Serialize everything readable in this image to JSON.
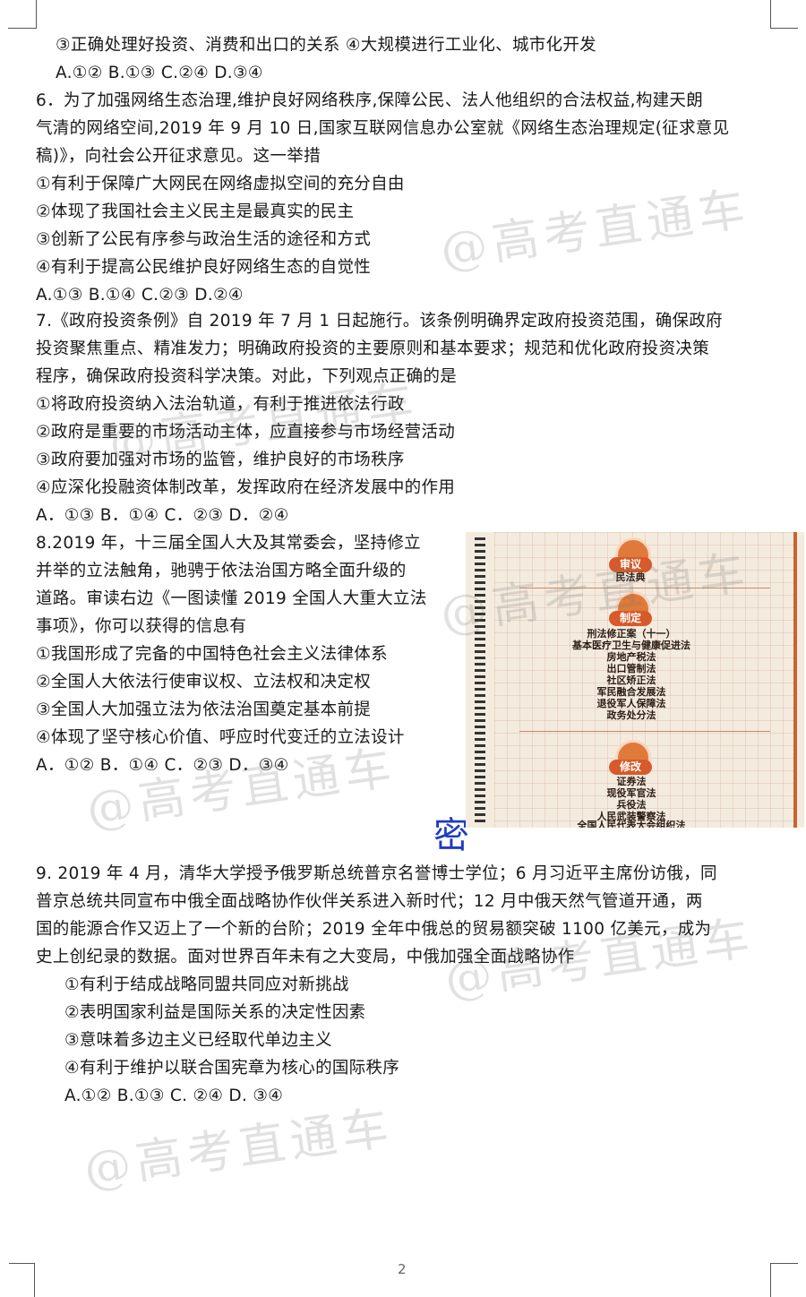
{
  "page_number": "2",
  "watermark": "@高考直通车",
  "stamp": "密",
  "lines": {
    "l01": "③正确处理好投资、消费和出口的关系 ④大规模进行工业化、城市化开发",
    "l02": "A.①② B.①③ C.②④ D.③④",
    "l03": "6．为了加强网络生态治理,维护良好网络秩序,保障公民、法人他组织的合法权益,构建天朗",
    "l04": "气清的网络空间,2019 年 9 月 10 日,国家互联网信息办公室就《网络生态治理规定(征求意见",
    "l05": "稿)》，向社会公开征求意见。这一举措",
    "l06": "①有利于保障广大网民在网络虚拟空间的充分自由",
    "l07": "②体现了我国社会主义民主是最真实的民主",
    "l08": "③创新了公民有序参与政治生活的途径和方式",
    "l09": "④有利于提高公民维护良好网络生态的自觉性",
    "l10": "A.①③ B.①④ C.②③ D.②④",
    "l11": "7.《政府投资条例》自 2019 年 7 月 1 日起施行。该条例明确界定政府投资范围，确保政府",
    "l12": "投资聚焦重点、精准发力；明确政府投资的主要原则和基本要求；规范和优化政府投资决策",
    "l13": "程序，确保政府投资科学决策。对此，下列观点正确的是",
    "l14": "①将政府投资纳入法治轨道，有利于推进依法行政",
    "l15": "②政府是重要的市场活动主体，应直接参与市场经营活动",
    "l16": "③政府要加强对市场的监管，维护良好的市场秩序",
    "l17": "④应深化投融资体制改革，发挥政府在经济发展中的作用",
    "l18": "A．①③ B．①④ C．②③ D．②④",
    "l19": "8.2019 年，十三届全国人大及其常委会，坚持修立",
    "l20": "并举的立法触角，驰骋于依法治国方略全面升级的",
    "l21": "道路。审读右边《一图读懂 2019 全国人大重大立法",
    "l22": "事项》，你可以获得的信息有",
    "l23": "①我国形成了完备的中国特色社会主义法律体系",
    "l24": "②全国人大依法行使审议权、立法权和决定权",
    "l25": "③全国人大加强立法为依法治国奠定基本前提",
    "l26": "④体现了坚守核心价值、呼应时代变迁的立法设计",
    "l27": "A．①② B．①④ C．②③ D．③④",
    "l28": "9. 2019 年 4 月，清华大学授予俄罗斯总统普京名誉博士学位；6 月习近平主席份访俄，同",
    "l29": "普京总统共同宣布中俄全面战略协作伙伴关系进入新时代；12 月中俄天然气管道开通，两",
    "l30": "国的能源合作又迈上了一个新的台阶；2019 全年中俄总的贸易额突破 1100 亿美元，成为",
    "l31": "史上创纪录的数据。面对世界百年未有之大变局，中俄加强全面战略协作",
    "l32": "①有利于结成战略同盟共同应对新挑战",
    "l33": "②表明国家利益是国际关系的决定性因素",
    "l34": "③意味着多边主义已经取代单边主义",
    "l35": "④有利于维护以联合国宪章为核心的国际秩序",
    "l36": "A.①② B.①③ C. ②④ D. ③④"
  },
  "infographic": {
    "section1_tag": "审议",
    "section1_items": [
      "民法典"
    ],
    "section2_tag": "制定",
    "section2_items": [
      "刑法修正案（十一）",
      "基本医疗卫生与健康促进法",
      "房地产税法",
      "出口管制法",
      "社区矫正法",
      "军民融合发展法",
      "退役军人保障法",
      "政务处分法"
    ],
    "section3_tag": "修改",
    "section3_items": [
      "证券法",
      "现役军官法",
      "兵役法",
      "人民武装警察法",
      "全国人民代表大会组织法"
    ]
  }
}
